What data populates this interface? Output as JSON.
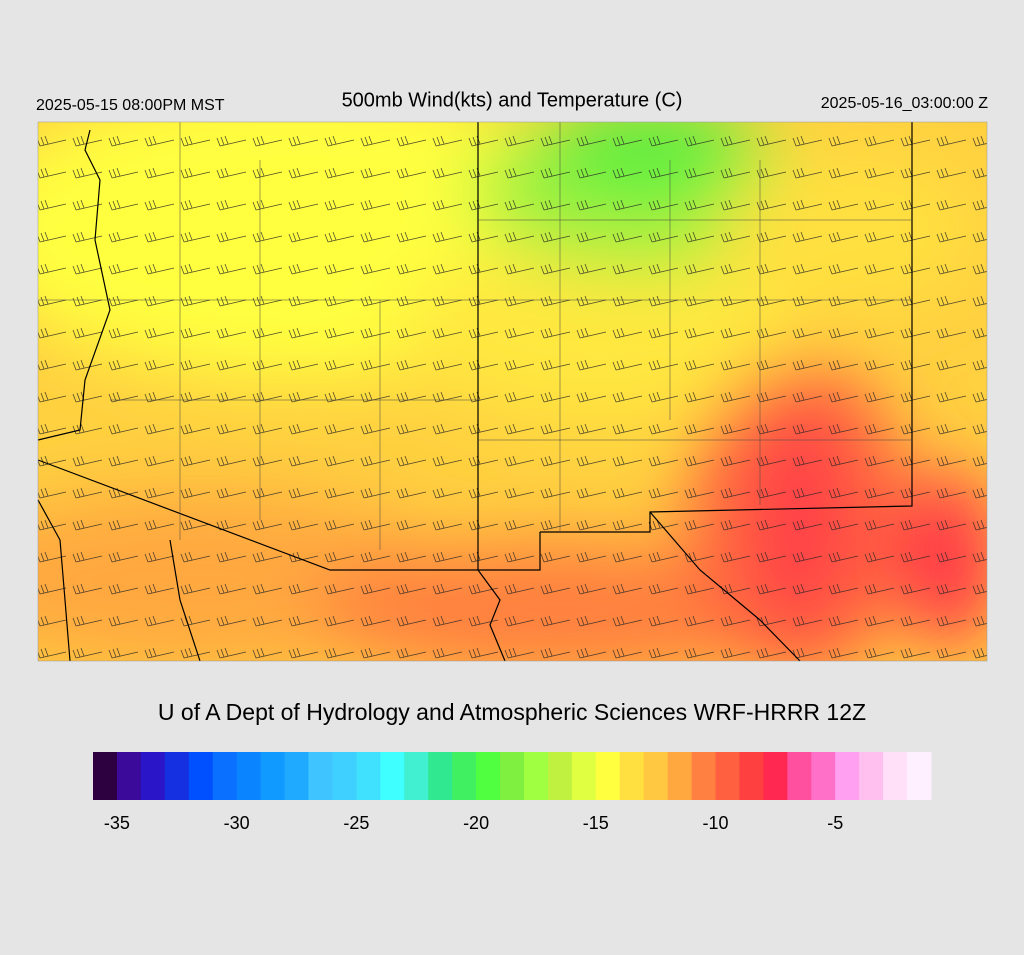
{
  "header": {
    "title": "500mb Wind(kts) and Temperature (C)",
    "valid_local": "2025-05-15 08:00PM MST",
    "valid_utc": "2025-05-16_03:00:00 Z"
  },
  "credit": "U of A Dept of Hydrology and Atmospheric Sciences WRF-HRRR 12Z",
  "colorbar": {
    "lim": [
      -36,
      -1
    ],
    "ticks": [
      -35,
      -30,
      -25,
      -20,
      -15,
      -10,
      -5
    ],
    "colors": [
      "#2d0040",
      "#3b0a9a",
      "#2a16c8",
      "#1530e0",
      "#0050ff",
      "#0a70ff",
      "#0a84ff",
      "#109aff",
      "#20aaff",
      "#40c4ff",
      "#40d0ff",
      "#40e0ff",
      "#40ffff",
      "#40f0d0",
      "#30e890",
      "#40f060",
      "#50ff40",
      "#80f040",
      "#a0ff40",
      "#c0f040",
      "#e0ff40",
      "#ffff40",
      "#ffe040",
      "#ffc840",
      "#ffa840",
      "#ff8040",
      "#ff6040",
      "#ff4040",
      "#ff2850",
      "#ff50a0",
      "#ff70c8",
      "#ffa0f0",
      "#ffc0f0",
      "#ffe0f8",
      "#fff0ff"
    ]
  }
}
